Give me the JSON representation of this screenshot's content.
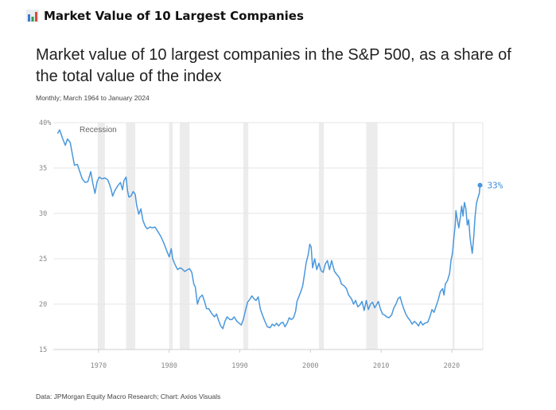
{
  "header": {
    "title": "Market Value of 10 Largest Companies",
    "icon": "bar-chart-icon"
  },
  "chart_data": {
    "type": "line",
    "title": "Market value of 10 largest companies in the S&P 500, as a share of the total value of the index",
    "subtitle": "Monthly; March 1964 to January 2024",
    "source": "Data: JPMorgan Equity Macro Research; Chart: Axios Visuals",
    "xlabel": "",
    "ylabel": "",
    "xlim": [
      1963.6,
      2024.4
    ],
    "ylim": [
      15,
      40
    ],
    "y_ticks": [
      15,
      20,
      25,
      30,
      35,
      40
    ],
    "y_tick_labels": [
      "15",
      "20",
      "25",
      "30",
      "35",
      "40%"
    ],
    "x_ticks": [
      1970,
      1980,
      1990,
      2000,
      2010,
      2020
    ],
    "x_tick_labels": [
      "1970",
      "1980",
      "1990",
      "2000",
      "2010",
      "2020"
    ],
    "grid": true,
    "line_color": "#4a97dc",
    "recession_color": "#ececec",
    "recession_label": "Recession",
    "recessions": [
      [
        1969.9,
        1970.9
      ],
      [
        1973.9,
        1975.2
      ],
      [
        1980.0,
        1980.5
      ],
      [
        1981.5,
        1982.9
      ],
      [
        1990.5,
        1991.2
      ],
      [
        2001.2,
        2001.9
      ],
      [
        2007.9,
        2009.5
      ],
      [
        2020.1,
        2020.4
      ]
    ],
    "end_label": "33%",
    "series": [
      {
        "values": [
          [
            1964.2,
            38.8
          ],
          [
            1964.5,
            39.2
          ],
          [
            1964.9,
            38.3
          ],
          [
            1965.3,
            37.5
          ],
          [
            1965.6,
            38.2
          ],
          [
            1966.0,
            37.8
          ],
          [
            1966.3,
            36.5
          ],
          [
            1966.6,
            35.3
          ],
          [
            1967.0,
            35.4
          ],
          [
            1967.3,
            34.7
          ],
          [
            1967.7,
            33.8
          ],
          [
            1968.1,
            33.4
          ],
          [
            1968.5,
            33.5
          ],
          [
            1968.9,
            34.6
          ],
          [
            1969.2,
            33.3
          ],
          [
            1969.5,
            32.2
          ],
          [
            1969.8,
            33.5
          ],
          [
            1970.1,
            34.0
          ],
          [
            1970.5,
            33.8
          ],
          [
            1970.9,
            33.9
          ],
          [
            1971.3,
            33.7
          ],
          [
            1971.6,
            33.1
          ],
          [
            1971.8,
            32.6
          ],
          [
            1972.0,
            31.9
          ],
          [
            1972.3,
            32.5
          ],
          [
            1972.7,
            33.0
          ],
          [
            1973.1,
            33.4
          ],
          [
            1973.4,
            32.6
          ],
          [
            1973.6,
            33.6
          ],
          [
            1973.9,
            34.0
          ],
          [
            1974.1,
            32.5
          ],
          [
            1974.3,
            31.8
          ],
          [
            1974.6,
            31.9
          ],
          [
            1974.9,
            32.4
          ],
          [
            1975.2,
            32.1
          ],
          [
            1975.4,
            30.9
          ],
          [
            1975.7,
            29.9
          ],
          [
            1976.0,
            30.5
          ],
          [
            1976.3,
            29.2
          ],
          [
            1976.6,
            28.6
          ],
          [
            1976.9,
            28.3
          ],
          [
            1977.3,
            28.5
          ],
          [
            1977.6,
            28.4
          ],
          [
            1978.0,
            28.5
          ],
          [
            1978.4,
            28.0
          ],
          [
            1978.8,
            27.5
          ],
          [
            1979.2,
            26.8
          ],
          [
            1979.6,
            26.0
          ],
          [
            1980.0,
            25.2
          ],
          [
            1980.3,
            26.1
          ],
          [
            1980.5,
            25.0
          ],
          [
            1980.8,
            24.4
          ],
          [
            1981.2,
            23.8
          ],
          [
            1981.5,
            24.0
          ],
          [
            1981.8,
            23.9
          ],
          [
            1982.2,
            23.6
          ],
          [
            1982.6,
            23.8
          ],
          [
            1982.9,
            23.9
          ],
          [
            1983.2,
            23.5
          ],
          [
            1983.5,
            22.2
          ],
          [
            1983.7,
            21.9
          ],
          [
            1984.0,
            20.0
          ],
          [
            1984.3,
            20.7
          ],
          [
            1984.7,
            21.0
          ],
          [
            1985.0,
            20.3
          ],
          [
            1985.3,
            19.5
          ],
          [
            1985.6,
            19.5
          ],
          [
            1986.0,
            19.0
          ],
          [
            1986.4,
            18.6
          ],
          [
            1986.7,
            18.9
          ],
          [
            1987.0,
            18.2
          ],
          [
            1987.3,
            17.6
          ],
          [
            1987.6,
            17.3
          ],
          [
            1987.9,
            18.1
          ],
          [
            1988.2,
            18.6
          ],
          [
            1988.6,
            18.3
          ],
          [
            1988.9,
            18.3
          ],
          [
            1989.2,
            18.6
          ],
          [
            1989.6,
            18.1
          ],
          [
            1989.9,
            17.9
          ],
          [
            1990.2,
            17.7
          ],
          [
            1990.5,
            18.3
          ],
          [
            1990.8,
            19.3
          ],
          [
            1991.1,
            20.2
          ],
          [
            1991.4,
            20.5
          ],
          [
            1991.7,
            20.9
          ],
          [
            1992.0,
            20.6
          ],
          [
            1992.3,
            20.4
          ],
          [
            1992.6,
            20.8
          ],
          [
            1992.9,
            19.5
          ],
          [
            1993.2,
            18.8
          ],
          [
            1993.5,
            18.2
          ],
          [
            1993.9,
            17.5
          ],
          [
            1994.3,
            17.4
          ],
          [
            1994.6,
            17.8
          ],
          [
            1994.9,
            17.6
          ],
          [
            1995.2,
            17.9
          ],
          [
            1995.5,
            17.6
          ],
          [
            1995.8,
            17.9
          ],
          [
            1996.1,
            18.0
          ],
          [
            1996.4,
            17.5
          ],
          [
            1996.7,
            17.9
          ],
          [
            1997.0,
            18.5
          ],
          [
            1997.3,
            18.3
          ],
          [
            1997.6,
            18.5
          ],
          [
            1997.9,
            19.2
          ],
          [
            1998.1,
            20.3
          ],
          [
            1998.4,
            20.9
          ],
          [
            1998.7,
            21.5
          ],
          [
            1998.9,
            22.0
          ],
          [
            1999.1,
            23.0
          ],
          [
            1999.4,
            24.6
          ],
          [
            1999.7,
            25.5
          ],
          [
            1999.9,
            26.6
          ],
          [
            2000.1,
            26.3
          ],
          [
            2000.3,
            24.0
          ],
          [
            2000.6,
            25.0
          ],
          [
            2000.9,
            23.8
          ],
          [
            2001.2,
            24.5
          ],
          [
            2001.5,
            23.7
          ],
          [
            2001.8,
            23.5
          ],
          [
            2002.1,
            24.4
          ],
          [
            2002.4,
            24.8
          ],
          [
            2002.7,
            23.8
          ],
          [
            2003.0,
            24.8
          ],
          [
            2003.4,
            23.6
          ],
          [
            2003.7,
            23.3
          ],
          [
            2004.1,
            22.9
          ],
          [
            2004.4,
            22.2
          ],
          [
            2004.8,
            22.0
          ],
          [
            2005.1,
            21.7
          ],
          [
            2005.4,
            21.0
          ],
          [
            2005.8,
            20.6
          ],
          [
            2006.1,
            20.0
          ],
          [
            2006.4,
            20.4
          ],
          [
            2006.7,
            19.7
          ],
          [
            2007.0,
            19.9
          ],
          [
            2007.3,
            20.3
          ],
          [
            2007.6,
            19.3
          ],
          [
            2007.9,
            20.4
          ],
          [
            2008.2,
            19.4
          ],
          [
            2008.5,
            20.0
          ],
          [
            2008.8,
            20.2
          ],
          [
            2009.1,
            19.6
          ],
          [
            2009.4,
            20.0
          ],
          [
            2009.6,
            20.3
          ],
          [
            2009.9,
            19.5
          ],
          [
            2010.2,
            18.9
          ],
          [
            2010.5,
            18.8
          ],
          [
            2010.8,
            18.6
          ],
          [
            2011.1,
            18.5
          ],
          [
            2011.5,
            18.8
          ],
          [
            2011.8,
            19.6
          ],
          [
            2012.1,
            20.0
          ],
          [
            2012.4,
            20.6
          ],
          [
            2012.7,
            20.8
          ],
          [
            2012.9,
            20.2
          ],
          [
            2013.2,
            19.5
          ],
          [
            2013.5,
            18.9
          ],
          [
            2013.8,
            18.5
          ],
          [
            2014.1,
            18.2
          ],
          [
            2014.4,
            17.8
          ],
          [
            2014.7,
            18.1
          ],
          [
            2015.0,
            17.9
          ],
          [
            2015.3,
            17.6
          ],
          [
            2015.6,
            18.1
          ],
          [
            2015.9,
            17.7
          ],
          [
            2016.2,
            17.9
          ],
          [
            2016.6,
            18.0
          ],
          [
            2016.9,
            18.6
          ],
          [
            2017.2,
            19.4
          ],
          [
            2017.5,
            19.1
          ],
          [
            2017.8,
            19.8
          ],
          [
            2018.1,
            20.5
          ],
          [
            2018.4,
            21.4
          ],
          [
            2018.7,
            21.7
          ],
          [
            2018.9,
            21.0
          ],
          [
            2019.1,
            22.2
          ],
          [
            2019.4,
            22.6
          ],
          [
            2019.7,
            23.4
          ],
          [
            2019.9,
            24.8
          ],
          [
            2020.1,
            25.6
          ],
          [
            2020.3,
            27.3
          ],
          [
            2020.5,
            28.8
          ],
          [
            2020.6,
            30.3
          ],
          [
            2020.8,
            29.3
          ],
          [
            2021.0,
            28.4
          ],
          [
            2021.2,
            29.5
          ],
          [
            2021.4,
            30.8
          ],
          [
            2021.6,
            29.7
          ],
          [
            2021.8,
            31.2
          ],
          [
            2022.0,
            30.5
          ],
          [
            2022.2,
            28.7
          ],
          [
            2022.4,
            29.3
          ],
          [
            2022.6,
            27.3
          ],
          [
            2022.9,
            25.6
          ],
          [
            2023.1,
            27.3
          ],
          [
            2023.3,
            29.6
          ],
          [
            2023.5,
            31.1
          ],
          [
            2023.7,
            31.7
          ],
          [
            2023.9,
            32.2
          ],
          [
            2024.0,
            33.1
          ]
        ]
      }
    ]
  }
}
